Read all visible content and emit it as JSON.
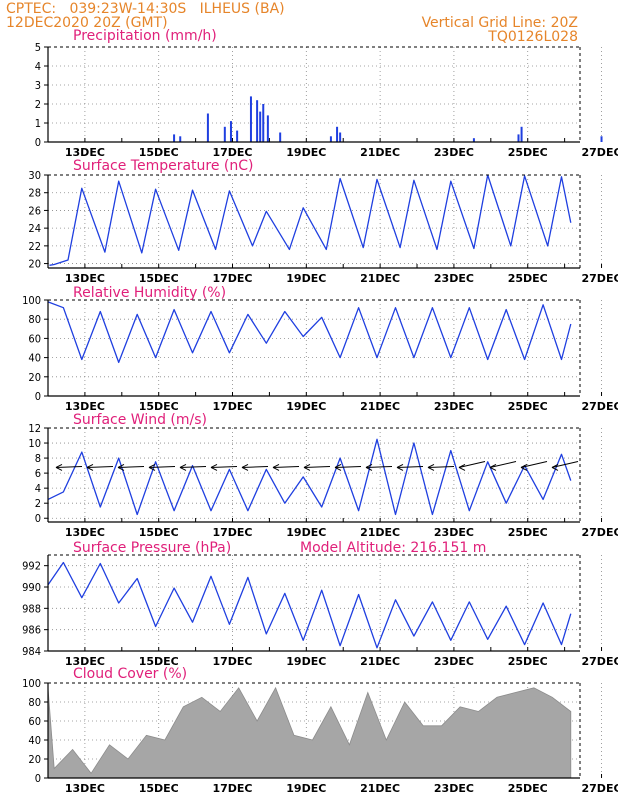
{
  "header": {
    "line1_left": "CPTEC:   039:23W-14:30S   ILHEUS (BA)",
    "line2_left": "12DEC2020 20Z (GMT)",
    "line1_right": "Vertical Grid Line: 20Z",
    "line2_right": "TQ0126L028"
  },
  "colors": {
    "header": "#e6852a",
    "title": "#e0207a",
    "line": "#1f3fe0",
    "cloud": "#a6a6a6"
  },
  "x_ticks": [
    "13DEC",
    "15DEC",
    "17DEC",
    "19DEC",
    "21DEC",
    "23DEC",
    "25DEC",
    "27DEC"
  ],
  "chart_data": [
    {
      "type": "bar",
      "title": "Precipitation  (mm/h)",
      "ylim": [
        0,
        5
      ],
      "yticks": [
        0,
        1,
        2,
        3,
        4,
        5
      ],
      "unit": "mm/h",
      "x": [
        "16DEC",
        "16DEC",
        "17DEC",
        "17DEC",
        "17DEC",
        "17DEC",
        "18DEC",
        "18DEC",
        "18DEC",
        "18DEC",
        "18DEC",
        "19DEC",
        "20DEC",
        "20DEC",
        "20DEC",
        "24DEC",
        "25DEC",
        "25DEC",
        "27DEC"
      ],
      "values": [
        0.4,
        0.3,
        0.8,
        1.1,
        0.6,
        1.5,
        2.4,
        2.2,
        1.6,
        2.0,
        1.4,
        0.5,
        0.3,
        0.8,
        0.5,
        0.2,
        0.4,
        0.8,
        0.3
      ]
    },
    {
      "type": "line",
      "title": "Surface Temperature  (nC)",
      "ylim": [
        19.5,
        30
      ],
      "yticks": [
        20,
        22,
        24,
        26,
        28,
        30
      ],
      "unit": "C",
      "x": [
        "12DEC 21Z",
        "13DEC 00Z",
        "13DEC 09Z",
        "13DEC 18Z",
        "14DEC 09Z",
        "14DEC 18Z",
        "15DEC 09Z",
        "15DEC 18Z",
        "16DEC 09Z",
        "16DEC 18Z",
        "17DEC 09Z",
        "17DEC 18Z",
        "18DEC 09Z",
        "18DEC 18Z",
        "19DEC 09Z",
        "19DEC 18Z",
        "20DEC 09Z",
        "20DEC 18Z",
        "21DEC 09Z",
        "21DEC 18Z",
        "22DEC 09Z",
        "22DEC 18Z",
        "23DEC 09Z",
        "23DEC 18Z",
        "24DEC 09Z",
        "24DEC 18Z",
        "25DEC 09Z",
        "25DEC 18Z",
        "26DEC 09Z",
        "26DEC 18Z",
        "27DEC 00Z"
      ],
      "values": [
        19.8,
        19.9,
        20.4,
        28.5,
        21.3,
        29.3,
        21.2,
        28.4,
        21.5,
        28.3,
        21.6,
        28.2,
        22.0,
        25.9,
        21.6,
        26.3,
        21.6,
        29.6,
        21.8,
        29.5,
        21.8,
        29.4,
        21.6,
        29.3,
        21.7,
        30.0,
        22.0,
        29.9,
        22.0,
        29.8,
        24.6
      ]
    },
    {
      "type": "line",
      "title": "Relative Humidity  (%)",
      "ylim": [
        0,
        100
      ],
      "yticks": [
        0,
        20,
        40,
        60,
        80,
        100
      ],
      "unit": "%",
      "x": [
        "12DEC 20Z",
        "13DEC 06Z",
        "13DEC 18Z",
        "14DEC 06Z",
        "14DEC 18Z",
        "15DEC 06Z",
        "15DEC 18Z",
        "16DEC 06Z",
        "16DEC 18Z",
        "17DEC 06Z",
        "17DEC 18Z",
        "18DEC 06Z",
        "18DEC 18Z",
        "19DEC 06Z",
        "19DEC 18Z",
        "20DEC 06Z",
        "20DEC 18Z",
        "21DEC 06Z",
        "21DEC 18Z",
        "22DEC 06Z",
        "22DEC 18Z",
        "23DEC 06Z",
        "23DEC 18Z",
        "24DEC 06Z",
        "24DEC 18Z",
        "25DEC 06Z",
        "25DEC 18Z",
        "26DEC 06Z",
        "26DEC 18Z",
        "27DEC 00Z"
      ],
      "values": [
        98,
        92,
        38,
        88,
        35,
        85,
        40,
        90,
        45,
        88,
        45,
        85,
        55,
        88,
        62,
        82,
        40,
        92,
        40,
        92,
        40,
        92,
        40,
        92,
        38,
        90,
        38,
        95,
        38,
        75
      ]
    },
    {
      "type": "line",
      "title": "Surface  Wind  (m/s)",
      "ylim": [
        -0.5,
        12
      ],
      "yticks": [
        0,
        2,
        4,
        6,
        8,
        10,
        12
      ],
      "unit": "m/s",
      "x": [
        "12DEC 20Z",
        "13DEC 06Z",
        "13DEC 18Z",
        "14DEC 06Z",
        "14DEC 18Z",
        "15DEC 06Z",
        "15DEC 18Z",
        "16DEC 06Z",
        "16DEC 18Z",
        "17DEC 06Z",
        "17DEC 18Z",
        "18DEC 06Z",
        "18DEC 18Z",
        "19DEC 06Z",
        "19DEC 18Z",
        "20DEC 06Z",
        "20DEC 18Z",
        "21DEC 06Z",
        "21DEC 18Z",
        "22DEC 06Z",
        "22DEC 18Z",
        "23DEC 06Z",
        "23DEC 18Z",
        "24DEC 06Z",
        "24DEC 18Z",
        "25DEC 06Z",
        "25DEC 18Z",
        "26DEC 06Z",
        "26DEC 18Z",
        "27DEC 00Z"
      ],
      "values": [
        2.5,
        3.5,
        8.8,
        1.5,
        8.0,
        0.5,
        7.5,
        1.0,
        7.0,
        1.0,
        6.5,
        1.0,
        6.5,
        2.0,
        5.5,
        1.5,
        8.0,
        1.0,
        10.5,
        0.5,
        10.0,
        0.5,
        9.0,
        1.0,
        7.5,
        2.0,
        7.0,
        2.5,
        8.5,
        5.0
      ]
    },
    {
      "type": "line",
      "title": "Surface Pressure  (hPa)",
      "annotation": "Model Altitude:  216.151  m",
      "ylim": [
        984,
        993
      ],
      "yticks": [
        984,
        986,
        988,
        990,
        992
      ],
      "unit": "hPa",
      "x": [
        "12DEC 20Z",
        "13DEC 06Z",
        "13DEC 18Z",
        "14DEC 06Z",
        "14DEC 18Z",
        "15DEC 06Z",
        "15DEC 18Z",
        "16DEC 06Z",
        "16DEC 18Z",
        "17DEC 06Z",
        "17DEC 18Z",
        "18DEC 06Z",
        "18DEC 18Z",
        "19DEC 06Z",
        "19DEC 18Z",
        "20DEC 06Z",
        "20DEC 18Z",
        "21DEC 06Z",
        "21DEC 18Z",
        "22DEC 06Z",
        "22DEC 18Z",
        "23DEC 06Z",
        "23DEC 18Z",
        "24DEC 06Z",
        "24DEC 18Z",
        "25DEC 06Z",
        "25DEC 18Z",
        "26DEC 06Z",
        "26DEC 18Z",
        "27DEC 00Z"
      ],
      "values": [
        990.2,
        992.3,
        989.0,
        992.2,
        988.5,
        990.8,
        986.3,
        989.9,
        986.7,
        991.0,
        986.5,
        990.9,
        985.6,
        989.4,
        985.0,
        989.7,
        984.5,
        989.3,
        984.3,
        988.8,
        985.4,
        988.6,
        985.0,
        988.6,
        985.1,
        988.2,
        984.6,
        988.5,
        984.6,
        987.5
      ]
    },
    {
      "type": "area",
      "title": "Cloud Cover  (%)",
      "ylim": [
        0,
        100
      ],
      "yticks": [
        0,
        20,
        40,
        60,
        80,
        100
      ],
      "unit": "%",
      "x": [
        "12DEC 20Z",
        "13DEC 00Z",
        "13DEC 12Z",
        "14DEC 00Z",
        "14DEC 12Z",
        "15DEC 00Z",
        "15DEC 12Z",
        "16DEC 00Z",
        "16DEC 12Z",
        "17DEC 00Z",
        "17DEC 12Z",
        "18DEC 00Z",
        "18DEC 12Z",
        "19DEC 00Z",
        "19DEC 12Z",
        "20DEC 00Z",
        "20DEC 12Z",
        "21DEC 00Z",
        "21DEC 12Z",
        "22DEC 00Z",
        "22DEC 12Z",
        "23DEC 00Z",
        "23DEC 12Z",
        "24DEC 00Z",
        "24DEC 12Z",
        "25DEC 00Z",
        "25DEC 12Z",
        "26DEC 00Z",
        "26DEC 12Z",
        "27DEC 00Z"
      ],
      "values": [
        95,
        10,
        30,
        5,
        35,
        20,
        45,
        40,
        75,
        85,
        70,
        95,
        60,
        95,
        45,
        40,
        75,
        35,
        90,
        40,
        80,
        55,
        55,
        75,
        70,
        85,
        90,
        95,
        85,
        70
      ]
    }
  ]
}
